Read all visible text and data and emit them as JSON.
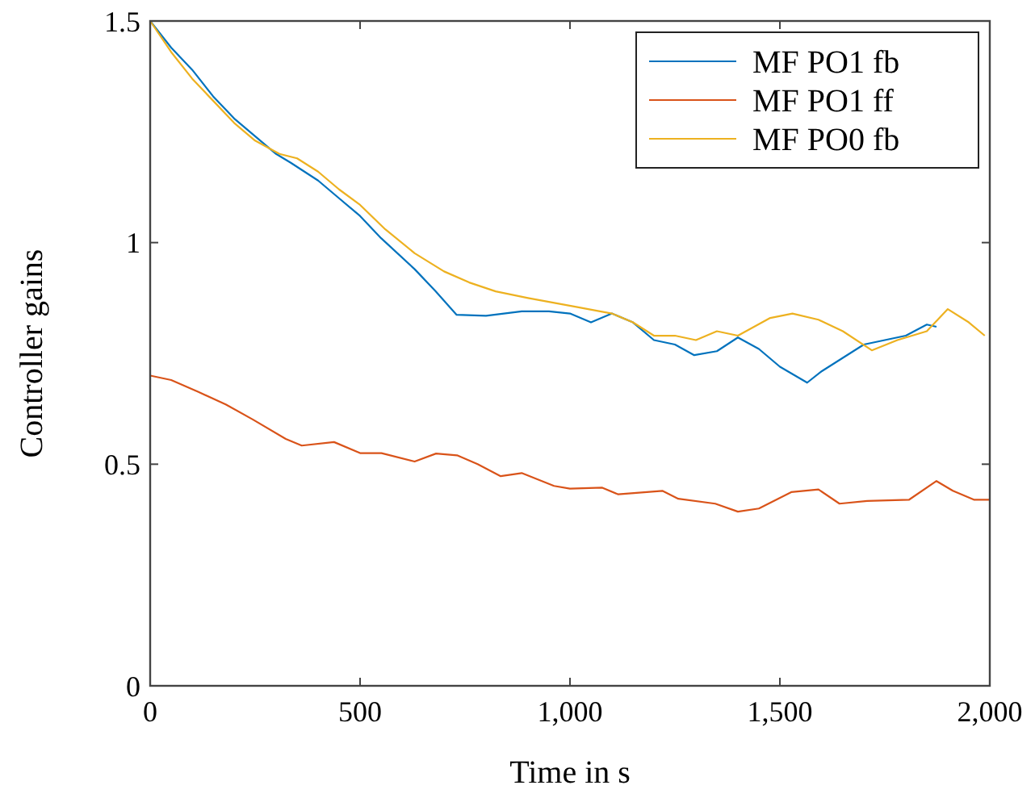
{
  "chart_data": {
    "type": "line",
    "xlabel": "Time in s",
    "ylabel": "Controller gains",
    "xlim": [
      0,
      2000
    ],
    "ylim": [
      0,
      1.5
    ],
    "xticks": [
      0,
      500,
      {
        "value": 1000,
        "label": "1,000"
      },
      {
        "value": 1500,
        "label": "1,500"
      },
      {
        "value": 2000,
        "label": "2,000"
      }
    ],
    "yticks": [
      0,
      0.5,
      1,
      1.5
    ],
    "grid": false,
    "legend": "top right",
    "series": [
      {
        "name": "MF PO1 fb",
        "color": "#0072bd",
        "x": [
          0,
          50,
          100,
          150,
          200,
          250,
          300,
          335,
          400,
          450,
          500,
          550,
          630,
          680,
          730,
          800,
          885,
          950,
          1000,
          1050,
          1100,
          1150,
          1200,
          1250,
          1296,
          1350,
          1400,
          1450,
          1500,
          1565,
          1600,
          1650,
          1700,
          1750,
          1800,
          1850,
          1873
        ],
        "values": [
          1.5,
          1.44,
          1.39,
          1.33,
          1.28,
          1.24,
          1.2,
          1.18,
          1.14,
          1.1,
          1.06,
          1.01,
          0.94,
          0.89,
          0.837,
          0.835,
          0.845,
          0.845,
          0.84,
          0.82,
          0.84,
          0.82,
          0.78,
          0.77,
          0.746,
          0.755,
          0.786,
          0.76,
          0.72,
          0.684,
          0.71,
          0.74,
          0.77,
          0.78,
          0.79,
          0.815,
          0.81
        ]
      },
      {
        "name": "MF PO1 ff",
        "color": "#d95319",
        "x": [
          0,
          50,
          115,
          180,
          246,
          323,
          361,
          438,
          500,
          551,
          630,
          681,
          731,
          780,
          835,
          885,
          962,
          1000,
          1077,
          1115,
          1220,
          1258,
          1346,
          1400,
          1450,
          1527,
          1592,
          1642,
          1708,
          1808,
          1873,
          1912,
          1962,
          2000
        ],
        "values": [
          0.7,
          0.69,
          0.663,
          0.635,
          0.6,
          0.557,
          0.542,
          0.55,
          0.525,
          0.525,
          0.506,
          0.524,
          0.52,
          0.5,
          0.473,
          0.48,
          0.451,
          0.445,
          0.447,
          0.432,
          0.44,
          0.422,
          0.411,
          0.393,
          0.4,
          0.437,
          0.443,
          0.411,
          0.417,
          0.42,
          0.462,
          0.44,
          0.42,
          0.42
        ]
      },
      {
        "name": "MF PO0 fb",
        "color": "#edb120",
        "x": [
          0,
          50,
          100,
          150,
          200,
          250,
          308,
          350,
          400,
          450,
          500,
          560,
          630,
          700,
          760,
          823,
          900,
          1015,
          1100,
          1150,
          1200,
          1250,
          1300,
          1350,
          1400,
          1477,
          1530,
          1592,
          1650,
          1719,
          1780,
          1850,
          1900,
          1950,
          1988
        ],
        "values": [
          1.5,
          1.43,
          1.37,
          1.32,
          1.27,
          1.23,
          1.2,
          1.19,
          1.16,
          1.12,
          1.085,
          1.03,
          0.976,
          0.935,
          0.91,
          0.89,
          0.875,
          0.855,
          0.84,
          0.82,
          0.79,
          0.79,
          0.78,
          0.8,
          0.79,
          0.83,
          0.84,
          0.826,
          0.8,
          0.757,
          0.78,
          0.8,
          0.85,
          0.82,
          0.79
        ]
      }
    ]
  }
}
